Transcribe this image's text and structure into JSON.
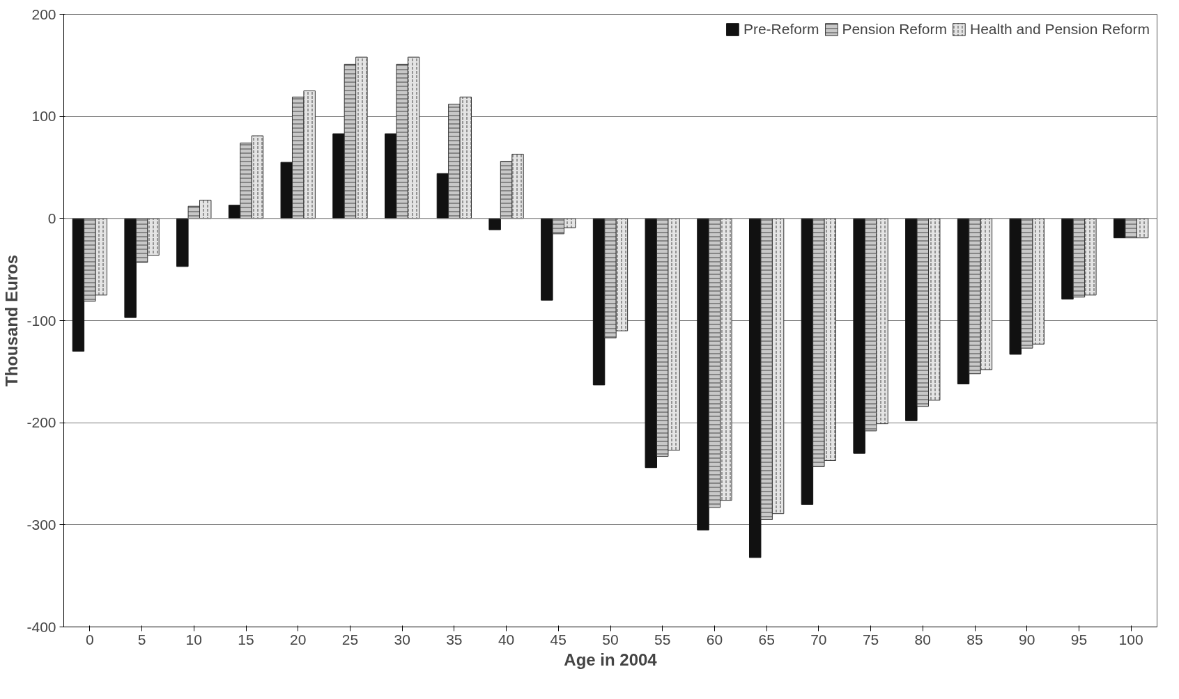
{
  "chart_data": {
    "type": "bar",
    "xlabel": "Age in 2004",
    "ylabel": "Thousand Euros",
    "categories": [
      "0",
      "5",
      "10",
      "15",
      "20",
      "25",
      "30",
      "35",
      "40",
      "45",
      "50",
      "55",
      "60",
      "65",
      "70",
      "75",
      "80",
      "85",
      "90",
      "95",
      "100"
    ],
    "series": [
      {
        "name": "Pre-Reform",
        "color": "#111111",
        "values": [
          -130,
          -97,
          -47,
          13,
          55,
          83,
          83,
          44,
          -11,
          -80,
          -163,
          -244,
          -305,
          -332,
          -280,
          -230,
          -198,
          -162,
          -133,
          -79,
          -19
        ]
      },
      {
        "name": "Pension Reform",
        "color": "#c8c8c8",
        "values": [
          -81,
          -43,
          12,
          74,
          119,
          151,
          151,
          112,
          56,
          -15,
          -117,
          -233,
          -283,
          -295,
          -243,
          -208,
          -184,
          -152,
          -127,
          -77,
          -19
        ]
      },
      {
        "name": "Health and Pension Reform",
        "color": "#e4e4e4",
        "values": [
          -75,
          -36,
          18,
          81,
          125,
          158,
          158,
          119,
          63,
          -9,
          -110,
          -227,
          -276,
          -289,
          -237,
          -201,
          -178,
          -148,
          -123,
          -75,
          -19
        ]
      }
    ],
    "ylim": [
      -400,
      200
    ],
    "yticks": [
      -400,
      -300,
      -200,
      -100,
      0,
      100,
      200
    ],
    "grid": "y",
    "legend": "top right"
  }
}
